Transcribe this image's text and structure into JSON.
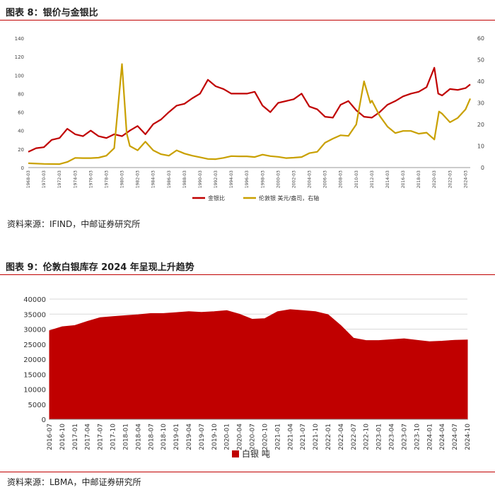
{
  "figure8": {
    "title": "图表 8：银价与金银比",
    "source": "资料来源：IFIND，中邮证券研究所",
    "chart_data": {
      "type": "line",
      "x_tick_labels": [
        "1968-03",
        "1970-03",
        "1972-03",
        "1974-03",
        "1976-03",
        "1978-03",
        "1980-03",
        "1982-03",
        "1984-03",
        "1986-03",
        "1988-03",
        "1990-03",
        "1992-03",
        "1994-03",
        "1996-03",
        "1998-03",
        "2000-03",
        "2002-03",
        "2004-03",
        "2006-03",
        "2008-03",
        "2010-03",
        "2012-03",
        "2014-03",
        "2016-03",
        "2018-03",
        "2020-03",
        "2022-03",
        "2024-03"
      ],
      "y_left_ticks": [
        0,
        20,
        40,
        60,
        80,
        100,
        120,
        140
      ],
      "y_right_ticks": [
        0,
        10,
        20,
        30,
        40,
        50,
        60
      ],
      "ylim_left": [
        0,
        140
      ],
      "ylim_right": [
        0,
        60
      ],
      "series": [
        {
          "name": "金银比",
          "axis": "left",
          "color": "#c00000",
          "points": [
            [
              1968,
              17
            ],
            [
              1969,
              21
            ],
            [
              1970,
              22
            ],
            [
              1971,
              30
            ],
            [
              1972,
              32
            ],
            [
              1973,
              42
            ],
            [
              1974,
              36
            ],
            [
              1975,
              34
            ],
            [
              1976,
              40
            ],
            [
              1977,
              34
            ],
            [
              1978,
              32
            ],
            [
              1979,
              36
            ],
            [
              1980,
              34
            ],
            [
              1981,
              40
            ],
            [
              1982,
              45
            ],
            [
              1983,
              36
            ],
            [
              1984,
              47
            ],
            [
              1985,
              52
            ],
            [
              1986,
              60
            ],
            [
              1987,
              67
            ],
            [
              1988,
              69
            ],
            [
              1989,
              75
            ],
            [
              1990,
              80
            ],
            [
              1991,
              95
            ],
            [
              1992,
              88
            ],
            [
              1993,
              85
            ],
            [
              1994,
              80
            ],
            [
              1995,
              80
            ],
            [
              1996,
              80
            ],
            [
              1997,
              82
            ],
            [
              1998,
              67
            ],
            [
              1999,
              60
            ],
            [
              2000,
              70
            ],
            [
              2001,
              72
            ],
            [
              2002,
              74
            ],
            [
              2003,
              80
            ],
            [
              2004,
              66
            ],
            [
              2005,
              63
            ],
            [
              2006,
              55
            ],
            [
              2007,
              54
            ],
            [
              2008,
              68
            ],
            [
              2009,
              72
            ],
            [
              2010,
              62
            ],
            [
              2011,
              55
            ],
            [
              2012,
              54
            ],
            [
              2013,
              60
            ],
            [
              2014,
              68
            ],
            [
              2015,
              72
            ],
            [
              2016,
              77
            ],
            [
              2017,
              80
            ],
            [
              2018,
              82
            ],
            [
              2019,
              87
            ],
            [
              2020,
              108
            ],
            [
              2020.5,
              80
            ],
            [
              2021,
              78
            ],
            [
              2022,
              85
            ],
            [
              2023,
              84
            ],
            [
              2024,
              86
            ],
            [
              2024.6,
              90
            ]
          ]
        },
        {
          "name": "伦敦银 美元/盎司，右轴",
          "axis": "right",
          "color": "#c9a000",
          "points": [
            [
              1968,
              2
            ],
            [
              1970,
              1.7
            ],
            [
              1972,
              1.6
            ],
            [
              1973,
              2.6
            ],
            [
              1974,
              4.5
            ],
            [
              1975,
              4.4
            ],
            [
              1976,
              4.4
            ],
            [
              1977,
              4.6
            ],
            [
              1978,
              5.5
            ],
            [
              1979,
              9
            ],
            [
              1980,
              48
            ],
            [
              1980.6,
              16
            ],
            [
              1981,
              10
            ],
            [
              1982,
              8
            ],
            [
              1983,
              12
            ],
            [
              1984,
              8
            ],
            [
              1985,
              6.2
            ],
            [
              1986,
              5.5
            ],
            [
              1987,
              8
            ],
            [
              1988,
              6.5
            ],
            [
              1989,
              5.5
            ],
            [
              1990,
              4.8
            ],
            [
              1991,
              4.0
            ],
            [
              1992,
              3.9
            ],
            [
              1993,
              4.5
            ],
            [
              1994,
              5.3
            ],
            [
              1995,
              5.2
            ],
            [
              1996,
              5.2
            ],
            [
              1997,
              4.9
            ],
            [
              1998,
              6.0
            ],
            [
              1999,
              5.3
            ],
            [
              2000,
              5.0
            ],
            [
              2001,
              4.4
            ],
            [
              2002,
              4.6
            ],
            [
              2003,
              4.9
            ],
            [
              2004,
              6.7
            ],
            [
              2005,
              7.3
            ],
            [
              2006,
              11.5
            ],
            [
              2007,
              13.4
            ],
            [
              2008,
              15
            ],
            [
              2009,
              14.7
            ],
            [
              2010,
              20
            ],
            [
              2011,
              40
            ],
            [
              2011.8,
              30
            ],
            [
              2012,
              31
            ],
            [
              2013,
              24
            ],
            [
              2014,
              19
            ],
            [
              2015,
              16
            ],
            [
              2016,
              17
            ],
            [
              2017,
              17
            ],
            [
              2018,
              15.7
            ],
            [
              2019,
              16.2
            ],
            [
              2020,
              13
            ],
            [
              2020.6,
              26
            ],
            [
              2021,
              25
            ],
            [
              2022,
              21
            ],
            [
              2023,
              23
            ],
            [
              2024,
              27
            ],
            [
              2024.6,
              32
            ]
          ]
        }
      ],
      "legend": [
        "金银比",
        "伦敦银 美元/盎司，右轴"
      ],
      "legend_placement": "bottom",
      "grid": false
    }
  },
  "figure9": {
    "title": "图表 9：伦敦白银库存 2024 年呈现上升趋势",
    "source": "资料来源：LBMA，中邮证券研究所",
    "chart_data": {
      "type": "area",
      "x_tick_labels": [
        "2016-07",
        "2016-10",
        "2017-01",
        "2017-04",
        "2017-07",
        "2017-10",
        "2018-01",
        "2018-04",
        "2018-07",
        "2018-10",
        "2019-01",
        "2019-04",
        "2019-07",
        "2019-10",
        "2020-01",
        "2020-04",
        "2020-07",
        "2020-10",
        "2021-01",
        "2021-04",
        "2021-07",
        "2021-10",
        "2022-01",
        "2022-04",
        "2022-07",
        "2022-10",
        "2023-01",
        "2023-04",
        "2023-07",
        "2023-10",
        "2024-01",
        "2024-04",
        "2024-07",
        "2024-10"
      ],
      "y_ticks": [
        0,
        5000,
        10000,
        15000,
        20000,
        25000,
        30000,
        35000,
        40000
      ],
      "ylim": [
        0,
        40000
      ],
      "series": [
        {
          "name": "白银 吨",
          "color": "#c00000",
          "values": [
            29500,
            30800,
            31200,
            32600,
            33800,
            34200,
            34500,
            34800,
            35200,
            35200,
            35500,
            35800,
            35600,
            35800,
            36200,
            35000,
            33300,
            33500,
            35800,
            36500,
            36200,
            35800,
            34800,
            31200,
            27000,
            26200,
            26200,
            26500,
            26800,
            26300,
            25800,
            26000,
            26300,
            26400
          ]
        }
      ],
      "legend": [
        "白银 吨"
      ],
      "legend_placement": "bottom",
      "grid": true
    }
  }
}
